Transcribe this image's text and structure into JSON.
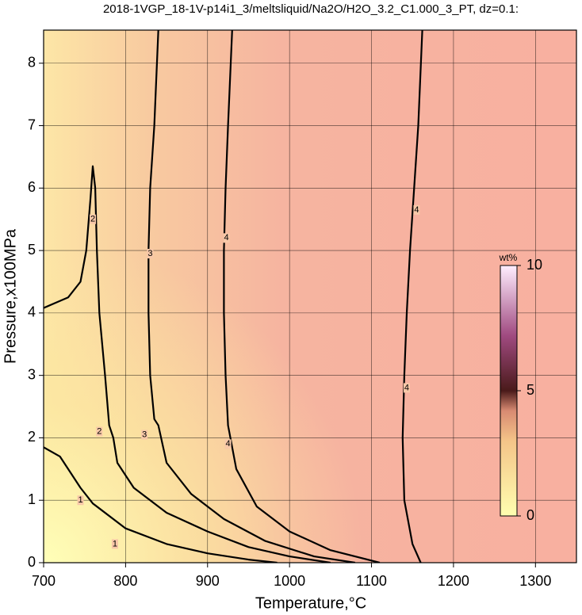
{
  "chart_data": {
    "type": "contour",
    "title": "2018-1VGP_18-1V-p14i1_3/meltsliquid/Na2O/H2O_3.2_C1.000_3_PT, dz=0.1:",
    "x_label": "Temperature,°C",
    "y_label": "Pressure,x100MPa",
    "xlim": [
      700,
      1350
    ],
    "ylim": [
      0,
      8.53
    ],
    "xticks": [
      700,
      800,
      900,
      1000,
      1100,
      1200,
      1300
    ],
    "yticks": [
      0,
      1,
      2,
      3,
      4,
      5,
      6,
      7,
      8
    ],
    "grid": true,
    "line_color": "#000000",
    "contours": [
      {
        "x": [
          700,
          720,
          745,
          760,
          800,
          850,
          900,
          950,
          985
        ],
        "y": [
          1.85,
          1.7,
          1.2,
          0.95,
          0.55,
          0.3,
          0.15,
          0.05,
          0
        ]
      },
      {
        "x": [
          700,
          730,
          745,
          752,
          757,
          760,
          763,
          765,
          768,
          775,
          780,
          785,
          790,
          810,
          850,
          900,
          950,
          1000,
          1050
        ],
        "y": [
          4.08,
          4.25,
          4.5,
          5,
          5.8,
          6.35,
          6,
          5,
          4,
          3,
          2.2,
          2.0,
          1.6,
          1.2,
          0.8,
          0.5,
          0.25,
          0.1,
          0
        ]
      },
      {
        "x": [
          840,
          835,
          830,
          828,
          828,
          830,
          835,
          840,
          850,
          880,
          920,
          970,
          1030,
          1080
        ],
        "y": [
          8.53,
          7,
          6,
          5,
          4,
          3,
          2.3,
          2.2,
          1.6,
          1.1,
          0.7,
          0.35,
          0.1,
          0
        ]
      },
      {
        "x": [
          930,
          925,
          922,
          920,
          920,
          922,
          925,
          935,
          960,
          1000,
          1050,
          1110
        ],
        "y": [
          8.53,
          7,
          6,
          5,
          4,
          3,
          2.2,
          1.5,
          0.9,
          0.5,
          0.2,
          0
        ]
      },
      {
        "x": [
          1162,
          1157,
          1152,
          1147,
          1143,
          1140,
          1138,
          1140,
          1150,
          1160
        ],
        "y": [
          8.53,
          7,
          6,
          5,
          4,
          3,
          2,
          1,
          0.3,
          0
        ]
      }
    ],
    "contour_labels": [
      {
        "value": 1,
        "x": 745,
        "y": 1.0
      },
      {
        "value": 1,
        "x": 787,
        "y": 0.3
      },
      {
        "value": 2,
        "x": 760,
        "y": 5.5
      },
      {
        "value": 2,
        "x": 768,
        "y": 2.1
      },
      {
        "value": 3,
        "x": 830,
        "y": 4.95
      },
      {
        "value": 3,
        "x": 823,
        "y": 2.05
      },
      {
        "value": 4,
        "x": 923,
        "y": 5.2
      },
      {
        "value": 4,
        "x": 925,
        "y": 1.9
      },
      {
        "value": 4,
        "x": 1155,
        "y": 5.65
      },
      {
        "value": 4,
        "x": 1143,
        "y": 2.8
      }
    ],
    "colorbar": {
      "label": "wt%",
      "lim": [
        0,
        10
      ],
      "ticks": [
        0,
        5,
        10
      ]
    }
  }
}
